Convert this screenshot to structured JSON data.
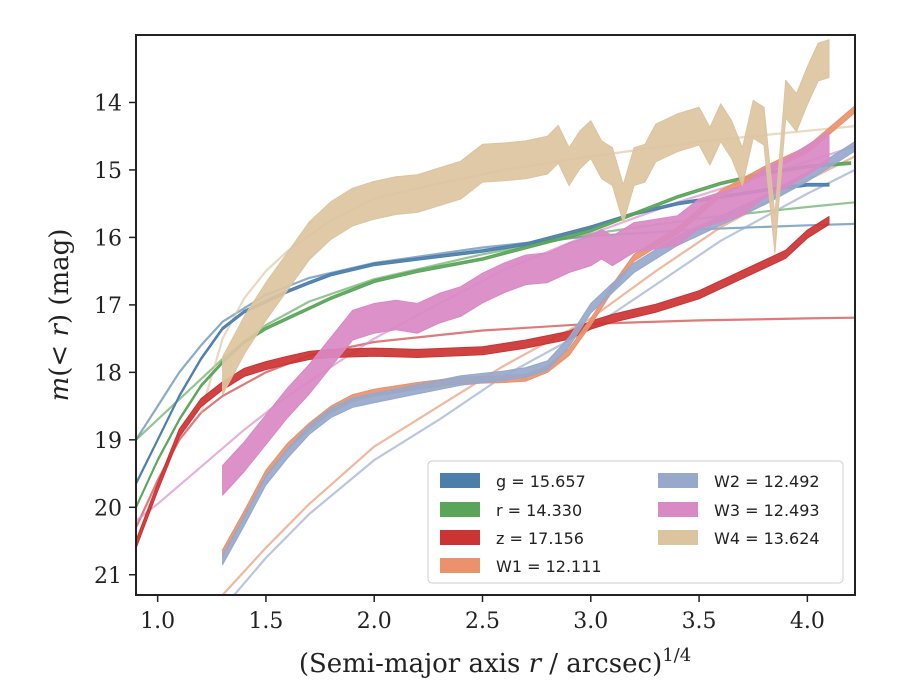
{
  "chart_data": {
    "type": "line",
    "xlabel": "(Semi-major axis r / arcsec)^1/4",
    "ylabel": "m(< r) (mag)",
    "xlim": [
      0.9,
      4.22
    ],
    "ylim": [
      21.3,
      13.0
    ],
    "y_inverted": true,
    "grid": false,
    "legend_location": "lower-right",
    "x_ticks": [
      "1.0",
      "1.5",
      "2.0",
      "2.5",
      "3.0",
      "3.5",
      "4.0"
    ],
    "y_ticks": [
      "14",
      "15",
      "16",
      "17",
      "18",
      "19",
      "20",
      "21"
    ],
    "series": [
      {
        "name": "g = 15.657",
        "legend_text": "g = 15.657",
        "color": "#4c7eab",
        "style": "band",
        "half_width": 0.02,
        "data": [
          [
            0.9,
            19.65
          ],
          [
            1.0,
            19.0
          ],
          [
            1.1,
            18.35
          ],
          [
            1.2,
            17.8
          ],
          [
            1.3,
            17.35
          ],
          [
            1.4,
            17.1
          ],
          [
            1.5,
            16.95
          ],
          [
            1.6,
            16.8
          ],
          [
            1.7,
            16.67
          ],
          [
            1.8,
            16.55
          ],
          [
            2.0,
            16.4
          ],
          [
            2.2,
            16.32
          ],
          [
            2.5,
            16.2
          ],
          [
            2.7,
            16.1
          ],
          [
            3.0,
            15.85
          ],
          [
            3.2,
            15.65
          ],
          [
            3.4,
            15.5
          ],
          [
            3.6,
            15.4
          ],
          [
            3.8,
            15.3
          ],
          [
            4.0,
            15.22
          ],
          [
            4.1,
            15.22
          ]
        ],
        "model": [
          [
            0.9,
            19.0
          ],
          [
            1.0,
            18.5
          ],
          [
            1.1,
            18.0
          ],
          [
            1.2,
            17.6
          ],
          [
            1.3,
            17.25
          ],
          [
            1.5,
            16.85
          ],
          [
            1.7,
            16.6
          ],
          [
            2.0,
            16.38
          ],
          [
            2.5,
            16.15
          ],
          [
            3.0,
            15.98
          ],
          [
            3.5,
            15.88
          ],
          [
            4.0,
            15.82
          ],
          [
            4.22,
            15.8
          ]
        ]
      },
      {
        "name": "r = 14.330",
        "legend_text": "r = 14.330",
        "color": "#5aa55a",
        "style": "band",
        "half_width": 0.02,
        "data": [
          [
            0.9,
            20.0
          ],
          [
            1.0,
            19.3
          ],
          [
            1.1,
            18.7
          ],
          [
            1.2,
            18.2
          ],
          [
            1.3,
            17.85
          ],
          [
            1.4,
            17.55
          ],
          [
            1.5,
            17.35
          ],
          [
            1.6,
            17.2
          ],
          [
            1.7,
            17.05
          ],
          [
            1.8,
            16.9
          ],
          [
            2.0,
            16.65
          ],
          [
            2.2,
            16.5
          ],
          [
            2.5,
            16.32
          ],
          [
            2.7,
            16.15
          ],
          [
            3.0,
            15.9
          ],
          [
            3.2,
            15.65
          ],
          [
            3.4,
            15.4
          ],
          [
            3.6,
            15.2
          ],
          [
            3.8,
            15.05
          ],
          [
            4.0,
            14.95
          ],
          [
            4.2,
            14.9
          ]
        ],
        "model": [
          [
            0.9,
            19.0
          ],
          [
            1.0,
            18.7
          ],
          [
            1.1,
            18.4
          ],
          [
            1.2,
            18.1
          ],
          [
            1.3,
            17.8
          ],
          [
            1.5,
            17.3
          ],
          [
            1.7,
            16.95
          ],
          [
            2.0,
            16.62
          ],
          [
            2.5,
            16.25
          ],
          [
            3.0,
            15.95
          ],
          [
            3.5,
            15.72
          ],
          [
            4.0,
            15.55
          ],
          [
            4.22,
            15.48
          ]
        ]
      },
      {
        "name": "z = 17.156",
        "legend_text": "z = 17.156",
        "color": "#cc3333",
        "style": "band",
        "half_width": 0.06,
        "data": [
          [
            0.9,
            20.55
          ],
          [
            1.0,
            19.7
          ],
          [
            1.1,
            18.9
          ],
          [
            1.2,
            18.45
          ],
          [
            1.3,
            18.2
          ],
          [
            1.4,
            18.0
          ],
          [
            1.5,
            17.9
          ],
          [
            1.6,
            17.82
          ],
          [
            1.7,
            17.75
          ],
          [
            1.8,
            17.72
          ],
          [
            2.0,
            17.7
          ],
          [
            2.2,
            17.72
          ],
          [
            2.5,
            17.68
          ],
          [
            2.7,
            17.58
          ],
          [
            2.9,
            17.45
          ],
          [
            3.0,
            17.3
          ],
          [
            3.1,
            17.2
          ],
          [
            3.3,
            17.05
          ],
          [
            3.5,
            16.85
          ],
          [
            3.7,
            16.55
          ],
          [
            3.9,
            16.25
          ],
          [
            4.0,
            15.95
          ],
          [
            4.1,
            15.75
          ]
        ],
        "model": [
          [
            0.9,
            20.3
          ],
          [
            1.0,
            19.6
          ],
          [
            1.1,
            19.0
          ],
          [
            1.2,
            18.6
          ],
          [
            1.3,
            18.35
          ],
          [
            1.5,
            18.0
          ],
          [
            1.7,
            17.75
          ],
          [
            2.0,
            17.55
          ],
          [
            2.5,
            17.38
          ],
          [
            3.0,
            17.28
          ],
          [
            3.5,
            17.23
          ],
          [
            4.0,
            17.2
          ],
          [
            4.22,
            17.19
          ]
        ]
      },
      {
        "name": "W1 = 12.111",
        "legend_text": "W1 = 12.111",
        "color": "#e9926c",
        "style": "band",
        "half_width": 0.05,
        "data": [
          [
            1.3,
            20.68
          ],
          [
            1.4,
            20.1
          ],
          [
            1.5,
            19.5
          ],
          [
            1.6,
            19.1
          ],
          [
            1.7,
            18.8
          ],
          [
            1.8,
            18.55
          ],
          [
            1.9,
            18.38
          ],
          [
            2.0,
            18.3
          ],
          [
            2.2,
            18.2
          ],
          [
            2.4,
            18.12
          ],
          [
            2.6,
            18.1
          ],
          [
            2.7,
            18.08
          ],
          [
            2.8,
            17.95
          ],
          [
            2.9,
            17.7
          ],
          [
            3.0,
            17.25
          ],
          [
            3.1,
            16.75
          ],
          [
            3.2,
            16.3
          ],
          [
            3.4,
            15.9
          ],
          [
            3.6,
            15.35
          ],
          [
            3.8,
            15.0
          ],
          [
            4.0,
            14.7
          ],
          [
            4.22,
            14.1
          ]
        ],
        "model": [
          [
            1.3,
            21.3
          ],
          [
            1.5,
            20.6
          ],
          [
            1.7,
            19.95
          ],
          [
            2.0,
            19.1
          ],
          [
            2.3,
            18.5
          ],
          [
            2.6,
            17.9
          ],
          [
            3.0,
            17.2
          ],
          [
            3.3,
            16.5
          ],
          [
            3.6,
            15.85
          ],
          [
            4.0,
            15.15
          ],
          [
            4.22,
            14.8
          ]
        ]
      },
      {
        "name": "W2 = 12.492",
        "legend_text": "W2 = 12.492",
        "color": "#97a8cb",
        "style": "band",
        "half_width": 0.07,
        "data": [
          [
            1.3,
            20.78
          ],
          [
            1.4,
            20.2
          ],
          [
            1.5,
            19.6
          ],
          [
            1.6,
            19.2
          ],
          [
            1.7,
            18.85
          ],
          [
            1.8,
            18.6
          ],
          [
            1.9,
            18.45
          ],
          [
            2.0,
            18.38
          ],
          [
            2.2,
            18.25
          ],
          [
            2.4,
            18.12
          ],
          [
            2.6,
            18.05
          ],
          [
            2.7,
            18.0
          ],
          [
            2.8,
            17.9
          ],
          [
            2.9,
            17.55
          ],
          [
            3.0,
            17.05
          ],
          [
            3.1,
            16.75
          ],
          [
            3.2,
            16.45
          ],
          [
            3.4,
            16.05
          ],
          [
            3.6,
            15.75
          ],
          [
            3.8,
            15.45
          ],
          [
            4.0,
            15.1
          ],
          [
            4.22,
            14.65
          ]
        ],
        "model": [
          [
            1.3,
            21.5
          ],
          [
            1.5,
            20.75
          ],
          [
            1.7,
            20.1
          ],
          [
            2.0,
            19.3
          ],
          [
            2.3,
            18.7
          ],
          [
            2.6,
            18.05
          ],
          [
            3.0,
            17.35
          ],
          [
            3.3,
            16.7
          ],
          [
            3.6,
            16.05
          ],
          [
            4.0,
            15.35
          ],
          [
            4.22,
            15.0
          ]
        ]
      },
      {
        "name": "W3 = 12.493",
        "legend_text": "W3 = 12.493",
        "color": "#d989c4",
        "style": "band",
        "half_width": 0.22,
        "data": [
          [
            1.3,
            19.6
          ],
          [
            1.4,
            19.25
          ],
          [
            1.5,
            18.85
          ],
          [
            1.6,
            18.45
          ],
          [
            1.7,
            18.1
          ],
          [
            1.8,
            17.7
          ],
          [
            1.9,
            17.3
          ],
          [
            2.0,
            17.2
          ],
          [
            2.1,
            17.15
          ],
          [
            2.2,
            17.2
          ],
          [
            2.3,
            17.05
          ],
          [
            2.4,
            16.95
          ],
          [
            2.5,
            16.75
          ],
          [
            2.6,
            16.6
          ],
          [
            2.7,
            16.48
          ],
          [
            2.8,
            16.45
          ],
          [
            2.9,
            16.3
          ],
          [
            3.0,
            16.2
          ],
          [
            3.05,
            16.1
          ],
          [
            3.1,
            16.2
          ],
          [
            3.2,
            16.0
          ],
          [
            3.3,
            15.95
          ],
          [
            3.4,
            15.9
          ],
          [
            3.5,
            15.65
          ],
          [
            3.6,
            15.55
          ],
          [
            3.7,
            15.45
          ],
          [
            3.8,
            15.2
          ],
          [
            3.9,
            15.05
          ],
          [
            4.0,
            14.85
          ],
          [
            4.1,
            14.65
          ]
        ],
        "model": [
          [
            0.9,
            20.2
          ],
          [
            1.0,
            19.95
          ],
          [
            1.2,
            19.4
          ],
          [
            1.4,
            18.85
          ],
          [
            1.6,
            18.35
          ],
          [
            1.8,
            17.92
          ],
          [
            2.0,
            17.5
          ],
          [
            2.3,
            16.98
          ],
          [
            2.6,
            16.48
          ],
          [
            3.0,
            15.95
          ],
          [
            3.4,
            15.48
          ],
          [
            3.8,
            15.08
          ],
          [
            4.22,
            14.65
          ]
        ]
      },
      {
        "name": "W4 = 13.624",
        "legend_text": "W4 = 13.624",
        "color": "#dcc49f",
        "style": "band",
        "half_width": 0.28,
        "data": [
          [
            1.3,
            18.05
          ],
          [
            1.4,
            17.45
          ],
          [
            1.5,
            16.95
          ],
          [
            1.6,
            16.5
          ],
          [
            1.7,
            16.05
          ],
          [
            1.8,
            15.75
          ],
          [
            1.9,
            15.55
          ],
          [
            2.0,
            15.45
          ],
          [
            2.1,
            15.38
          ],
          [
            2.2,
            15.35
          ],
          [
            2.3,
            15.25
          ],
          [
            2.4,
            15.15
          ],
          [
            2.5,
            14.9
          ],
          [
            2.6,
            14.88
          ],
          [
            2.7,
            14.85
          ],
          [
            2.8,
            14.78
          ],
          [
            2.85,
            14.62
          ],
          [
            2.9,
            14.95
          ],
          [
            2.95,
            14.7
          ],
          [
            3.0,
            14.55
          ],
          [
            3.05,
            14.85
          ],
          [
            3.1,
            14.95
          ],
          [
            3.15,
            15.5
          ],
          [
            3.2,
            14.95
          ],
          [
            3.25,
            14.9
          ],
          [
            3.3,
            14.6
          ],
          [
            3.4,
            14.45
          ],
          [
            3.5,
            14.35
          ],
          [
            3.55,
            14.65
          ],
          [
            3.6,
            14.3
          ],
          [
            3.65,
            14.55
          ],
          [
            3.7,
            14.95
          ],
          [
            3.75,
            14.25
          ],
          [
            3.8,
            14.35
          ],
          [
            3.85,
            15.95
          ],
          [
            3.9,
            13.95
          ],
          [
            3.95,
            14.15
          ],
          [
            4.0,
            13.75
          ],
          [
            4.05,
            13.4
          ],
          [
            4.1,
            13.35
          ]
        ],
        "model": [
          [
            1.2,
            18.6
          ],
          [
            1.3,
            17.5
          ],
          [
            1.4,
            16.9
          ],
          [
            1.5,
            16.5
          ],
          [
            1.6,
            16.2
          ],
          [
            1.8,
            15.75
          ],
          [
            2.0,
            15.42
          ],
          [
            2.3,
            15.2
          ],
          [
            2.6,
            15.0
          ],
          [
            3.0,
            14.8
          ],
          [
            3.5,
            14.58
          ],
          [
            4.0,
            14.42
          ],
          [
            4.22,
            14.35
          ]
        ]
      }
    ]
  }
}
